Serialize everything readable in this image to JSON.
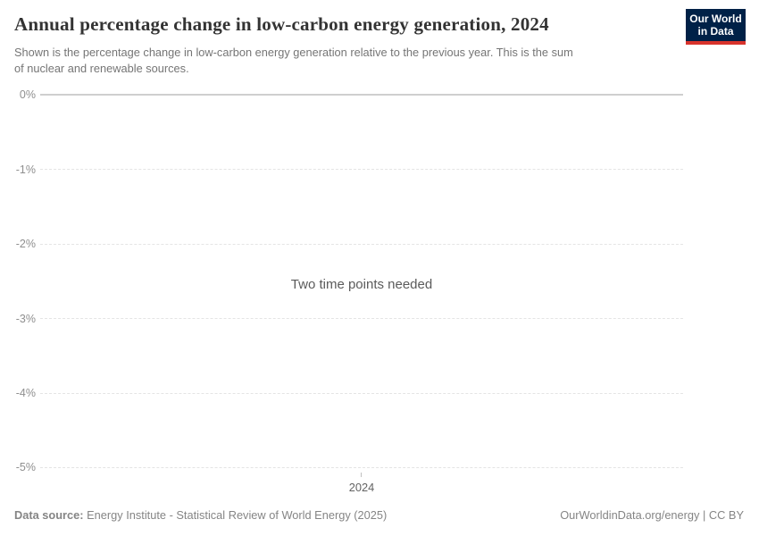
{
  "header": {
    "title": "Annual percentage change in low-carbon energy generation, 2024",
    "subtitle_line1": "Shown is the percentage change in low-carbon energy generation relative to the previous year. This is the sum",
    "subtitle_line2": "of nuclear and renewable sources.",
    "logo": {
      "line1": "Our World",
      "line2": "in Data",
      "bg_color": "#002147",
      "accent_color": "#d8332c"
    }
  },
  "chart_data": {
    "type": "line",
    "title": "Annual percentage change in low-carbon energy generation, 2024",
    "series": [],
    "no_data_message": "Two time points needed",
    "x_tick_labels": [
      "2024"
    ],
    "y_tick_labels": [
      "0%",
      "-1%",
      "-2%",
      "-3%",
      "-4%",
      "-5%"
    ],
    "ylim": [
      -5,
      0
    ],
    "xlabel": "",
    "ylabel": "",
    "grid": true,
    "legend": "none",
    "grid_solid_color": "#cfcfcf",
    "grid_dashed_color": "#e4e4e4"
  },
  "footer": {
    "data_source_label": "Data source:",
    "data_source_value": "Energy Institute - Statistical Review of World Energy (2025)",
    "attribution": "OurWorldinData.org/energy | CC BY"
  }
}
